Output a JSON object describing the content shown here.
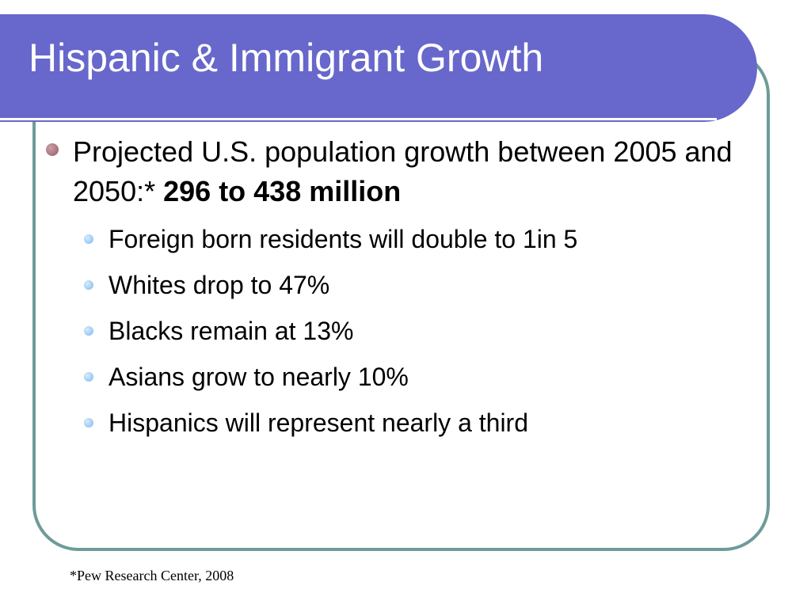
{
  "slide": {
    "title": "Hispanic & Immigrant Growth",
    "main_bullet": {
      "text": "Projected U.S. population growth between 2005 and 2050:*",
      "emphasis": "296 to 438 million"
    },
    "sub_bullets": [
      "Foreign born residents will double to 1in 5",
      "Whites drop to 47%",
      "Blacks remain at 13%",
      "Asians grow to nearly 10%",
      "Hispanics will represent nearly a third"
    ],
    "footnote": "*Pew Research Center, 2008"
  },
  "colors": {
    "title_bar": "#6767cc",
    "frame_border": "#6e9b99",
    "main_bullet": "#9a5a66",
    "sub_bullet": "#7ab8ee"
  }
}
